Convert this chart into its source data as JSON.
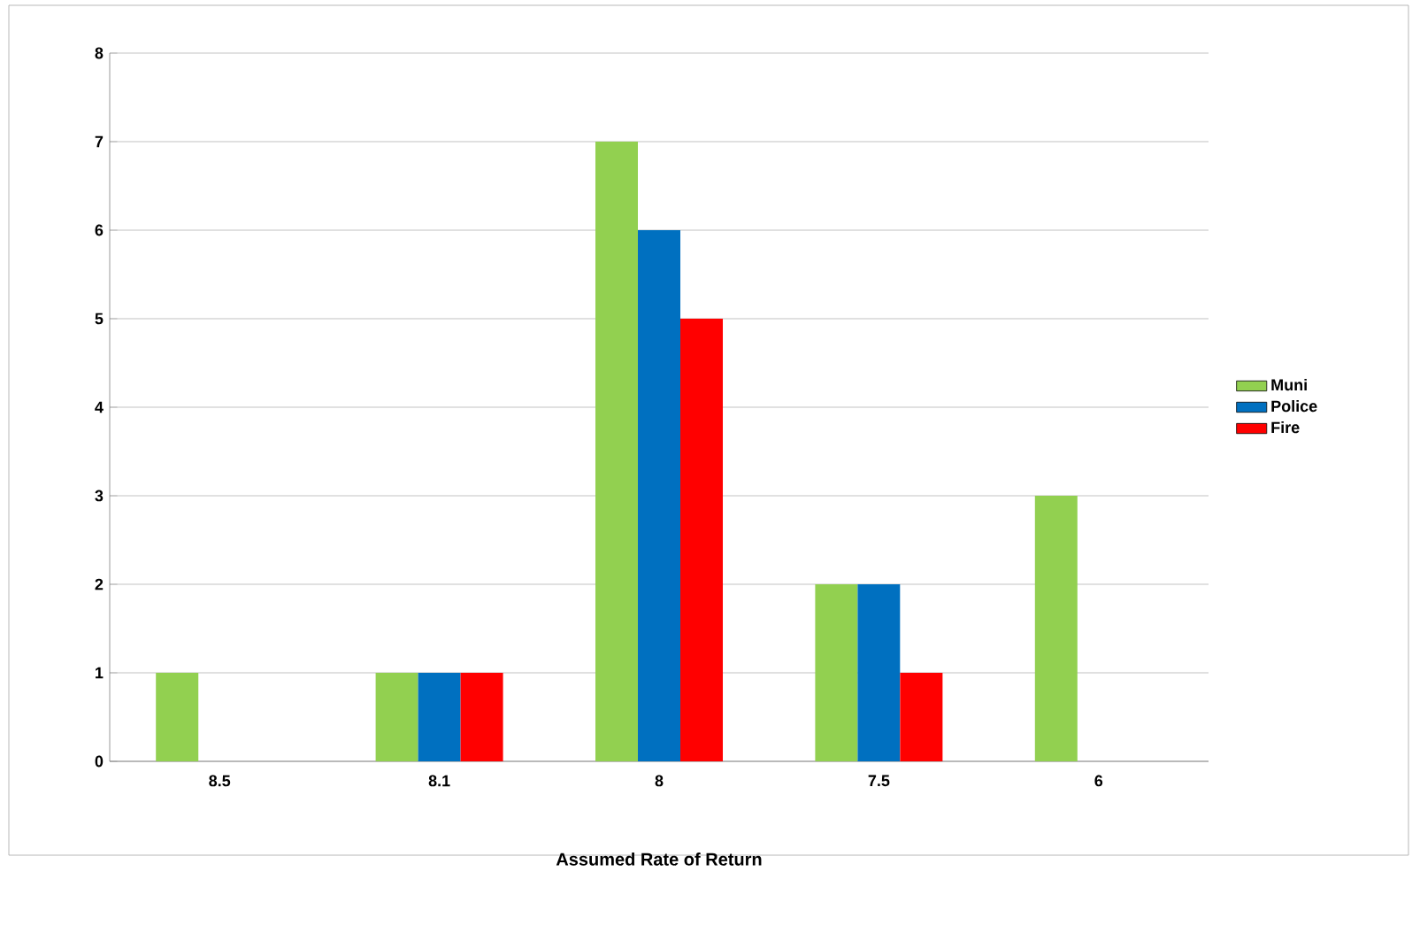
{
  "chart_data": {
    "type": "bar",
    "xlabel": "Assumed Rate of Return",
    "categories": [
      "8.5",
      "8.1",
      "8",
      "7.5",
      "6"
    ],
    "series": [
      {
        "name": "Muni",
        "color": "#92d050",
        "values": [
          1,
          1,
          7,
          2,
          3
        ]
      },
      {
        "name": "Police",
        "color": "#0070c0",
        "values": [
          null,
          1,
          6,
          2,
          null
        ]
      },
      {
        "name": "Fire",
        "color": "#ff0000",
        "values": [
          null,
          1,
          5,
          1,
          null
        ]
      }
    ],
    "ylim": [
      0,
      8
    ],
    "yticks": [
      0,
      1,
      2,
      3,
      4,
      5,
      6,
      7,
      8
    ],
    "grid": "y",
    "legend": "right"
  }
}
